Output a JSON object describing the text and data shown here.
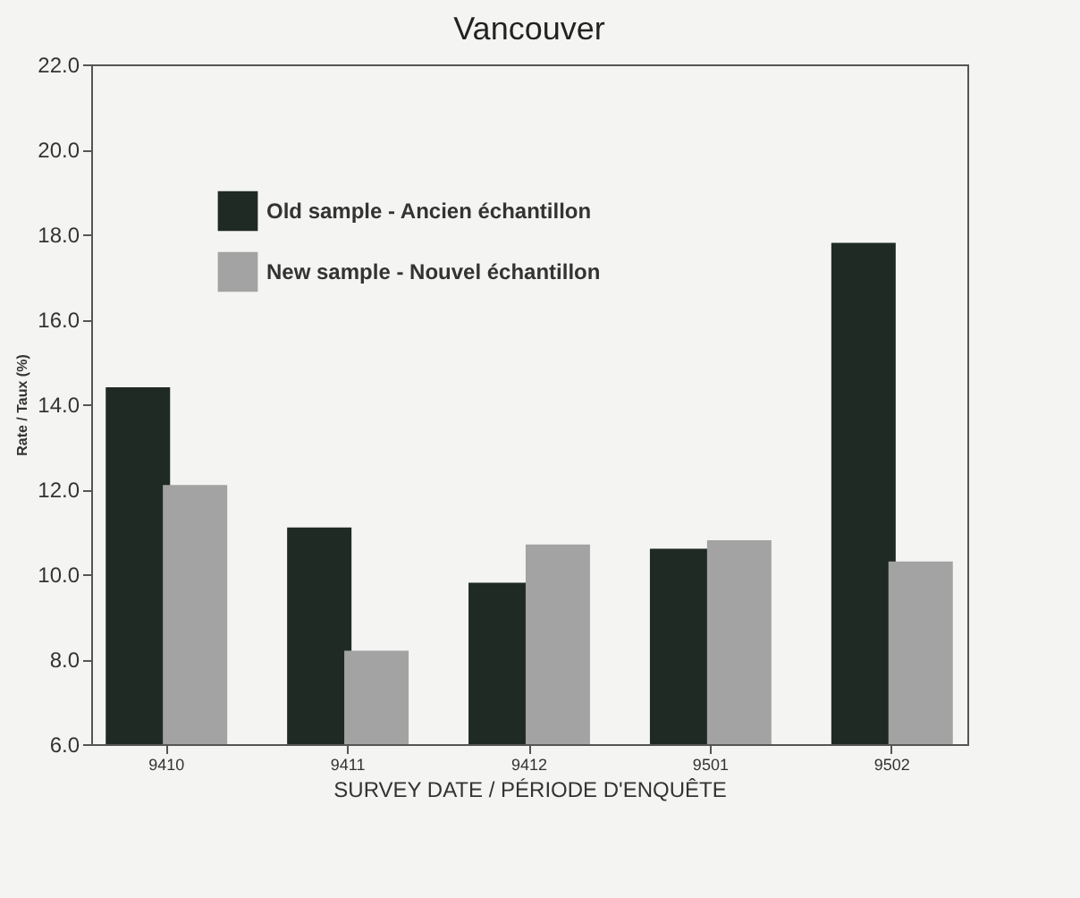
{
  "chart_data": {
    "type": "bar",
    "title": "Vancouver",
    "xlabel": "SURVEY DATE / PÉRIODE D'ENQUÊTE",
    "ylabel": "Rate / Taux (%)",
    "categories": [
      "9410",
      "9411",
      "9412",
      "9501",
      "9502"
    ],
    "series": [
      {
        "name": "Old sample - Ancien échantillon",
        "color": "#1f2a25",
        "values": [
          14.4,
          11.1,
          9.8,
          10.6,
          17.8
        ]
      },
      {
        "name": "New sample - Nouvel échantillon",
        "color": "#a3a3a3",
        "values": [
          12.1,
          8.2,
          10.7,
          10.8,
          10.3
        ]
      }
    ],
    "ylim": [
      6,
      22
    ],
    "yticks": [
      {
        "value": 6,
        "label": "6.0"
      },
      {
        "value": 8,
        "label": "8.0"
      },
      {
        "value": 10,
        "label": "10.0"
      },
      {
        "value": 12,
        "label": "12.0"
      },
      {
        "value": 14,
        "label": "14.0"
      },
      {
        "value": 16,
        "label": "16.0"
      },
      {
        "value": 18,
        "label": "18.0"
      },
      {
        "value": 20,
        "label": "20.0"
      },
      {
        "value": 22,
        "label": "22.0"
      }
    ],
    "grid": false,
    "legend": "top left"
  }
}
